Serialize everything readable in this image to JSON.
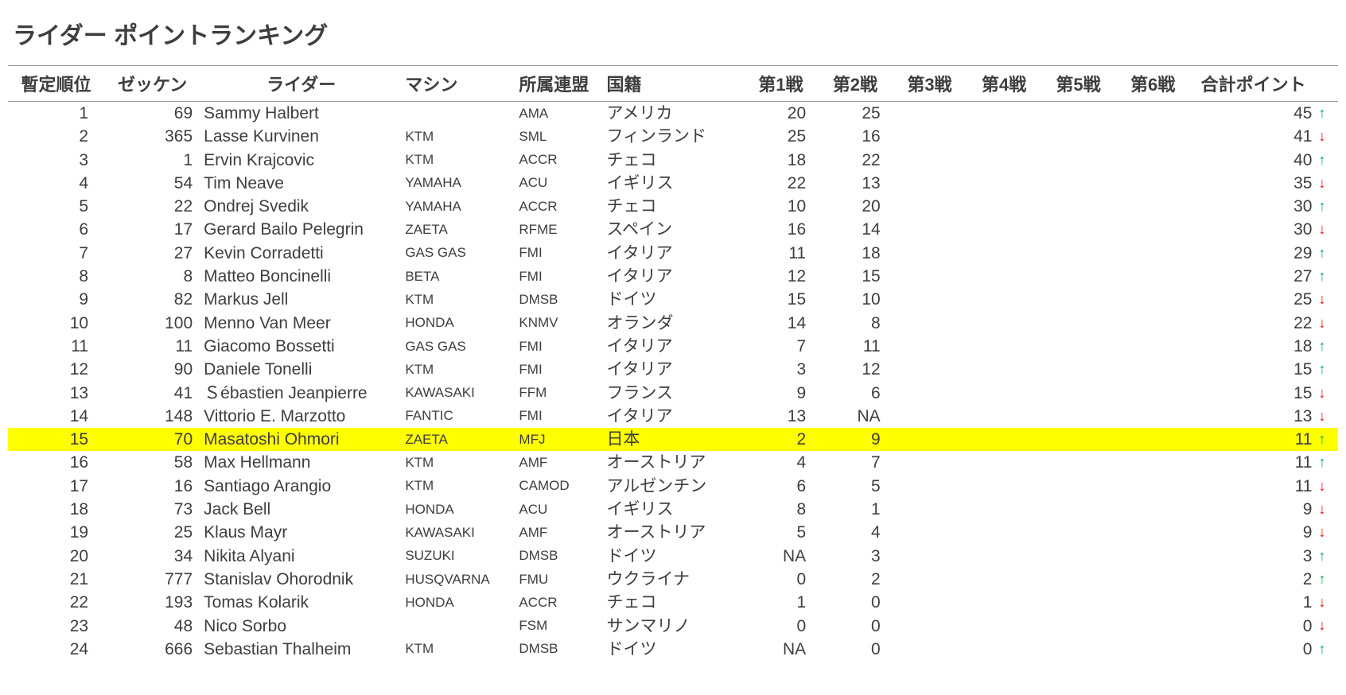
{
  "title": "ライダー  ポイントランキング",
  "columns": {
    "pos": "暫定順位",
    "num": "ゼッケン",
    "rider": "ライダー",
    "machine": "マシン",
    "fed": "所属連盟",
    "nat": "国籍",
    "r1": "第1戦",
    "r2": "第2戦",
    "r3": "第3戦",
    "r4": "第4戦",
    "r5": "第5戦",
    "r6": "第6戦",
    "total": "合計ポイント"
  },
  "highlight_color": "#ffff00",
  "up_color": "#00b050",
  "down_color": "#ff0000",
  "rows": [
    {
      "pos": "1",
      "num": "69",
      "rider": "Sammy Halbert",
      "machine": "",
      "fed": "AMA",
      "nat": "アメリカ",
      "r1": "20",
      "r2": "25",
      "r3": "",
      "r4": "",
      "r5": "",
      "r6": "",
      "total": "45",
      "trend": "up",
      "highlight": false
    },
    {
      "pos": "2",
      "num": "365",
      "rider": "Lasse Kurvinen",
      "machine": "KTM",
      "fed": "SML",
      "nat": "フィンランド",
      "r1": "25",
      "r2": "16",
      "r3": "",
      "r4": "",
      "r5": "",
      "r6": "",
      "total": "41",
      "trend": "down",
      "highlight": false
    },
    {
      "pos": "3",
      "num": "1",
      "rider": "Ervin Krajcovic",
      "machine": "KTM",
      "fed": "ACCR",
      "nat": "チェコ",
      "r1": "18",
      "r2": "22",
      "r3": "",
      "r4": "",
      "r5": "",
      "r6": "",
      "total": "40",
      "trend": "up",
      "highlight": false
    },
    {
      "pos": "4",
      "num": "54",
      "rider": "Tim Neave",
      "machine": "YAMAHA",
      "fed": "ACU",
      "nat": "イギリス",
      "r1": "22",
      "r2": "13",
      "r3": "",
      "r4": "",
      "r5": "",
      "r6": "",
      "total": "35",
      "trend": "down",
      "highlight": false
    },
    {
      "pos": "5",
      "num": "22",
      "rider": "Ondrej Svedik",
      "machine": "YAMAHA",
      "fed": "ACCR",
      "nat": "チェコ",
      "r1": "10",
      "r2": "20",
      "r3": "",
      "r4": "",
      "r5": "",
      "r6": "",
      "total": "30",
      "trend": "up",
      "highlight": false
    },
    {
      "pos": "6",
      "num": "17",
      "rider": "Gerard Bailo Pelegrin",
      "machine": "ZAETA",
      "fed": "RFME",
      "nat": "スペイン",
      "r1": "16",
      "r2": "14",
      "r3": "",
      "r4": "",
      "r5": "",
      "r6": "",
      "total": "30",
      "trend": "down",
      "highlight": false
    },
    {
      "pos": "7",
      "num": "27",
      "rider": "Kevin Corradetti",
      "machine": "GAS GAS",
      "fed": "FMI",
      "nat": "イタリア",
      "r1": "11",
      "r2": "18",
      "r3": "",
      "r4": "",
      "r5": "",
      "r6": "",
      "total": "29",
      "trend": "up",
      "highlight": false
    },
    {
      "pos": "8",
      "num": "8",
      "rider": "Matteo Boncinelli",
      "machine": "BETA",
      "fed": "FMI",
      "nat": "イタリア",
      "r1": "12",
      "r2": "15",
      "r3": "",
      "r4": "",
      "r5": "",
      "r6": "",
      "total": "27",
      "trend": "up",
      "highlight": false
    },
    {
      "pos": "9",
      "num": "82",
      "rider": "Markus Jell",
      "machine": "KTM",
      "fed": "DMSB",
      "nat": "ドイツ",
      "r1": "15",
      "r2": "10",
      "r3": "",
      "r4": "",
      "r5": "",
      "r6": "",
      "total": "25",
      "trend": "down",
      "highlight": false
    },
    {
      "pos": "10",
      "num": "100",
      "rider": "Menno Van Meer",
      "machine": "HONDA",
      "fed": "KNMV",
      "nat": "オランダ",
      "r1": "14",
      "r2": "8",
      "r3": "",
      "r4": "",
      "r5": "",
      "r6": "",
      "total": "22",
      "trend": "down",
      "highlight": false
    },
    {
      "pos": "11",
      "num": "11",
      "rider": "Giacomo Bossetti",
      "machine": "GAS GAS",
      "fed": "FMI",
      "nat": "イタリア",
      "r1": "7",
      "r2": "11",
      "r3": "",
      "r4": "",
      "r5": "",
      "r6": "",
      "total": "18",
      "trend": "up",
      "highlight": false
    },
    {
      "pos": "12",
      "num": "90",
      "rider": "Daniele Tonelli",
      "machine": "KTM",
      "fed": "FMI",
      "nat": "イタリア",
      "r1": "3",
      "r2": "12",
      "r3": "",
      "r4": "",
      "r5": "",
      "r6": "",
      "total": "15",
      "trend": "up",
      "highlight": false
    },
    {
      "pos": "13",
      "num": "41",
      "rider": "Ｓébastien Jeanpierre",
      "machine": "KAWASAKI",
      "fed": "FFM",
      "nat": "フランス",
      "r1": "9",
      "r2": "6",
      "r3": "",
      "r4": "",
      "r5": "",
      "r6": "",
      "total": "15",
      "trend": "down",
      "highlight": false
    },
    {
      "pos": "14",
      "num": "148",
      "rider": "Vittorio E. Marzotto",
      "machine": "FANTIC",
      "fed": "FMI",
      "nat": "イタリア",
      "r1": "13",
      "r2": "NA",
      "r3": "",
      "r4": "",
      "r5": "",
      "r6": "",
      "total": "13",
      "trend": "down",
      "highlight": false
    },
    {
      "pos": "15",
      "num": "70",
      "rider": "Masatoshi Ohmori",
      "machine": "ZAETA",
      "fed": "MFJ",
      "nat": "日本",
      "r1": "2",
      "r2": "9",
      "r3": "",
      "r4": "",
      "r5": "",
      "r6": "",
      "total": "11",
      "trend": "up",
      "highlight": true
    },
    {
      "pos": "16",
      "num": "58",
      "rider": "Max Hellmann",
      "machine": "KTM",
      "fed": "AMF",
      "nat": "オーストリア",
      "r1": "4",
      "r2": "7",
      "r3": "",
      "r4": "",
      "r5": "",
      "r6": "",
      "total": "11",
      "trend": "up",
      "highlight": false
    },
    {
      "pos": "17",
      "num": "16",
      "rider": "Santiago Arangio",
      "machine": "KTM",
      "fed": "CAMOD",
      "nat": "アルゼンチン",
      "r1": "6",
      "r2": "5",
      "r3": "",
      "r4": "",
      "r5": "",
      "r6": "",
      "total": "11",
      "trend": "down",
      "highlight": false
    },
    {
      "pos": "18",
      "num": "73",
      "rider": "Jack Bell",
      "machine": "HONDA",
      "fed": "ACU",
      "nat": "イギリス",
      "r1": "8",
      "r2": "1",
      "r3": "",
      "r4": "",
      "r5": "",
      "r6": "",
      "total": "9",
      "trend": "down",
      "highlight": false
    },
    {
      "pos": "19",
      "num": "25",
      "rider": "Klaus Mayr",
      "machine": "KAWASAKI",
      "fed": "AMF",
      "nat": "オーストリア",
      "r1": "5",
      "r2": "4",
      "r3": "",
      "r4": "",
      "r5": "",
      "r6": "",
      "total": "9",
      "trend": "down",
      "highlight": false
    },
    {
      "pos": "20",
      "num": "34",
      "rider": "Nikita Alyani",
      "machine": "SUZUKI",
      "fed": "DMSB",
      "nat": "ドイツ",
      "r1": "NA",
      "r2": "3",
      "r3": "",
      "r4": "",
      "r5": "",
      "r6": "",
      "total": "3",
      "trend": "up",
      "highlight": false
    },
    {
      "pos": "21",
      "num": "777",
      "rider": "Stanislav Ohorodnik",
      "machine": "HUSQVARNA",
      "fed": "FMU",
      "nat": "ウクライナ",
      "r1": "0",
      "r2": "2",
      "r3": "",
      "r4": "",
      "r5": "",
      "r6": "",
      "total": "2",
      "trend": "up",
      "highlight": false
    },
    {
      "pos": "22",
      "num": "193",
      "rider": "Tomas Kolarik",
      "machine": "HONDA",
      "fed": "ACCR",
      "nat": "チェコ",
      "r1": "1",
      "r2": "0",
      "r3": "",
      "r4": "",
      "r5": "",
      "r6": "",
      "total": "1",
      "trend": "down",
      "highlight": false
    },
    {
      "pos": "23",
      "num": "48",
      "rider": "Nico Sorbo",
      "machine": "",
      "fed": "FSM",
      "nat": "サンマリノ",
      "r1": "0",
      "r2": "0",
      "r3": "",
      "r4": "",
      "r5": "",
      "r6": "",
      "total": "0",
      "trend": "down",
      "highlight": false
    },
    {
      "pos": "24",
      "num": "666",
      "rider": "Sebastian Thalheim",
      "machine": "KTM",
      "fed": "DMSB",
      "nat": "ドイツ",
      "r1": "NA",
      "r2": "0",
      "r3": "",
      "r4": "",
      "r5": "",
      "r6": "",
      "total": "0",
      "trend": "up",
      "highlight": false
    }
  ]
}
